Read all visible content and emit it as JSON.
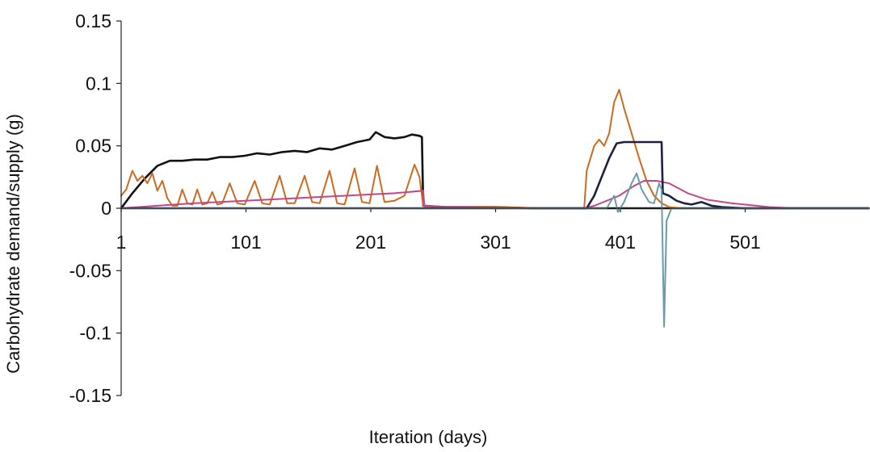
{
  "chart_data": {
    "type": "line",
    "title": "",
    "xlabel": "Iteration (days)",
    "ylabel": "Carbohydrate demand/supply (g)",
    "xlim": [
      1,
      600
    ],
    "ylim": [
      -0.15,
      0.15
    ],
    "x_ticks": [
      1,
      101,
      201,
      301,
      401,
      501
    ],
    "x_tick_labels": [
      "1",
      "101",
      "201",
      "301",
      "401",
      "501"
    ],
    "y_ticks": [
      0.15,
      0.1,
      0.05,
      0,
      -0.05,
      -0.1,
      -0.15
    ],
    "y_tick_labels": [
      "0.15",
      "0.1",
      "0.05",
      "0",
      "-0.05",
      "-0.1",
      "-0.15"
    ],
    "grid": false,
    "legend": "none",
    "series": [
      {
        "color": "#111111",
        "points": [
          [
            1,
            0
          ],
          [
            10,
            0.012
          ],
          [
            20,
            0.024
          ],
          [
            30,
            0.034
          ],
          [
            40,
            0.038
          ],
          [
            50,
            0.038
          ],
          [
            60,
            0.039
          ],
          [
            70,
            0.039
          ],
          [
            80,
            0.041
          ],
          [
            90,
            0.041
          ],
          [
            100,
            0.042
          ],
          [
            110,
            0.044
          ],
          [
            120,
            0.043
          ],
          [
            130,
            0.045
          ],
          [
            140,
            0.046
          ],
          [
            150,
            0.045
          ],
          [
            160,
            0.048
          ],
          [
            170,
            0.047
          ],
          [
            180,
            0.05
          ],
          [
            190,
            0.053
          ],
          [
            200,
            0.055
          ],
          [
            205,
            0.061
          ],
          [
            212,
            0.057
          ],
          [
            220,
            0.056
          ],
          [
            228,
            0.057
          ],
          [
            234,
            0.059
          ],
          [
            240,
            0.058
          ],
          [
            242,
            0.057
          ],
          [
            243,
            0.002
          ],
          [
            260,
            0.001
          ],
          [
            300,
            0.001
          ],
          [
            330,
            0
          ],
          [
            360,
            0
          ],
          [
            380,
            0
          ],
          [
            600,
            0
          ]
        ]
      },
      {
        "color": "#cc6a1e",
        "points": [
          [
            1,
            0.01
          ],
          [
            5,
            0.015
          ],
          [
            10,
            0.03
          ],
          [
            14,
            0.022
          ],
          [
            18,
            0.026
          ],
          [
            22,
            0.02
          ],
          [
            26,
            0.028
          ],
          [
            30,
            0.014
          ],
          [
            34,
            0.022
          ],
          [
            38,
            0.008
          ],
          [
            42,
            0.002
          ],
          [
            46,
            0.002
          ],
          [
            50,
            0.015
          ],
          [
            54,
            0.004
          ],
          [
            58,
            0.003
          ],
          [
            62,
            0.015
          ],
          [
            66,
            0.003
          ],
          [
            70,
            0.004
          ],
          [
            74,
            0.013
          ],
          [
            78,
            0.003
          ],
          [
            82,
            0.004
          ],
          [
            88,
            0.02
          ],
          [
            94,
            0.004
          ],
          [
            100,
            0.003
          ],
          [
            108,
            0.022
          ],
          [
            114,
            0.004
          ],
          [
            120,
            0.003
          ],
          [
            128,
            0.026
          ],
          [
            134,
            0.004
          ],
          [
            140,
            0.004
          ],
          [
            148,
            0.026
          ],
          [
            154,
            0.005
          ],
          [
            160,
            0.004
          ],
          [
            168,
            0.03
          ],
          [
            174,
            0.004
          ],
          [
            180,
            0.003
          ],
          [
            188,
            0.032
          ],
          [
            194,
            0.005
          ],
          [
            200,
            0.004
          ],
          [
            206,
            0.034
          ],
          [
            212,
            0.005
          ],
          [
            220,
            0.006
          ],
          [
            228,
            0.01
          ],
          [
            236,
            0.035
          ],
          [
            240,
            0.025
          ],
          [
            243,
            0.002
          ],
          [
            260,
            0.001
          ],
          [
            300,
            0.001
          ],
          [
            340,
            0
          ],
          [
            372,
            0
          ],
          [
            374,
            0.03
          ],
          [
            380,
            0.05
          ],
          [
            384,
            0.055
          ],
          [
            388,
            0.05
          ],
          [
            392,
            0.06
          ],
          [
            396,
            0.085
          ],
          [
            400,
            0.095
          ],
          [
            404,
            0.08
          ],
          [
            410,
            0.06
          ],
          [
            416,
            0.04
          ],
          [
            422,
            0.022
          ],
          [
            428,
            0.01
          ],
          [
            434,
            0.004
          ],
          [
            440,
            0.001
          ],
          [
            450,
            0
          ],
          [
            600,
            0
          ]
        ]
      },
      {
        "color": "#c2478a",
        "points": [
          [
            1,
            0
          ],
          [
            30,
            0.002
          ],
          [
            60,
            0.004
          ],
          [
            100,
            0.006
          ],
          [
            140,
            0.008
          ],
          [
            180,
            0.01
          ],
          [
            220,
            0.012
          ],
          [
            243,
            0.014
          ],
          [
            244,
            0.002
          ],
          [
            260,
            0.001
          ],
          [
            300,
            0
          ],
          [
            372,
            0
          ],
          [
            380,
            0.002
          ],
          [
            400,
            0.01
          ],
          [
            412,
            0.018
          ],
          [
            420,
            0.022
          ],
          [
            430,
            0.022
          ],
          [
            440,
            0.02
          ],
          [
            455,
            0.012
          ],
          [
            470,
            0.007
          ],
          [
            490,
            0.004
          ],
          [
            510,
            0.002
          ],
          [
            520,
            0.001
          ],
          [
            540,
            0
          ],
          [
            600,
            0
          ]
        ]
      },
      {
        "color": "#1c2140",
        "points": [
          [
            1,
            0
          ],
          [
            370,
            0
          ],
          [
            374,
            0
          ],
          [
            380,
            0.01
          ],
          [
            386,
            0.025
          ],
          [
            392,
            0.04
          ],
          [
            398,
            0.052
          ],
          [
            404,
            0.053
          ],
          [
            420,
            0.053
          ],
          [
            434,
            0.053
          ],
          [
            435,
            0.012
          ],
          [
            440,
            0.01
          ],
          [
            446,
            0.006
          ],
          [
            452,
            0.004
          ],
          [
            458,
            0.003
          ],
          [
            466,
            0.005
          ],
          [
            474,
            0.002
          ],
          [
            482,
            0.001
          ],
          [
            500,
            0
          ],
          [
            600,
            0
          ]
        ]
      },
      {
        "color": "#6a9ba8",
        "points": [
          [
            1,
            0
          ],
          [
            370,
            0
          ],
          [
            390,
            0
          ],
          [
            396,
            0.01
          ],
          [
            399,
            -0.003
          ],
          [
            404,
            0.005
          ],
          [
            410,
            0.02
          ],
          [
            414,
            0.028
          ],
          [
            418,
            0.015
          ],
          [
            424,
            0.005
          ],
          [
            428,
            0.004
          ],
          [
            432,
            0.02
          ],
          [
            434,
            0.015
          ],
          [
            436,
            -0.095
          ],
          [
            438,
            -0.01
          ],
          [
            442,
            0
          ],
          [
            600,
            0
          ]
        ]
      }
    ],
    "x_axis_points": [
      [
        1,
        0
      ],
      [
        600,
        0
      ]
    ],
    "y_axis_points": [
      [
        1,
        0.15
      ],
      [
        1,
        -0.15
      ]
    ]
  }
}
